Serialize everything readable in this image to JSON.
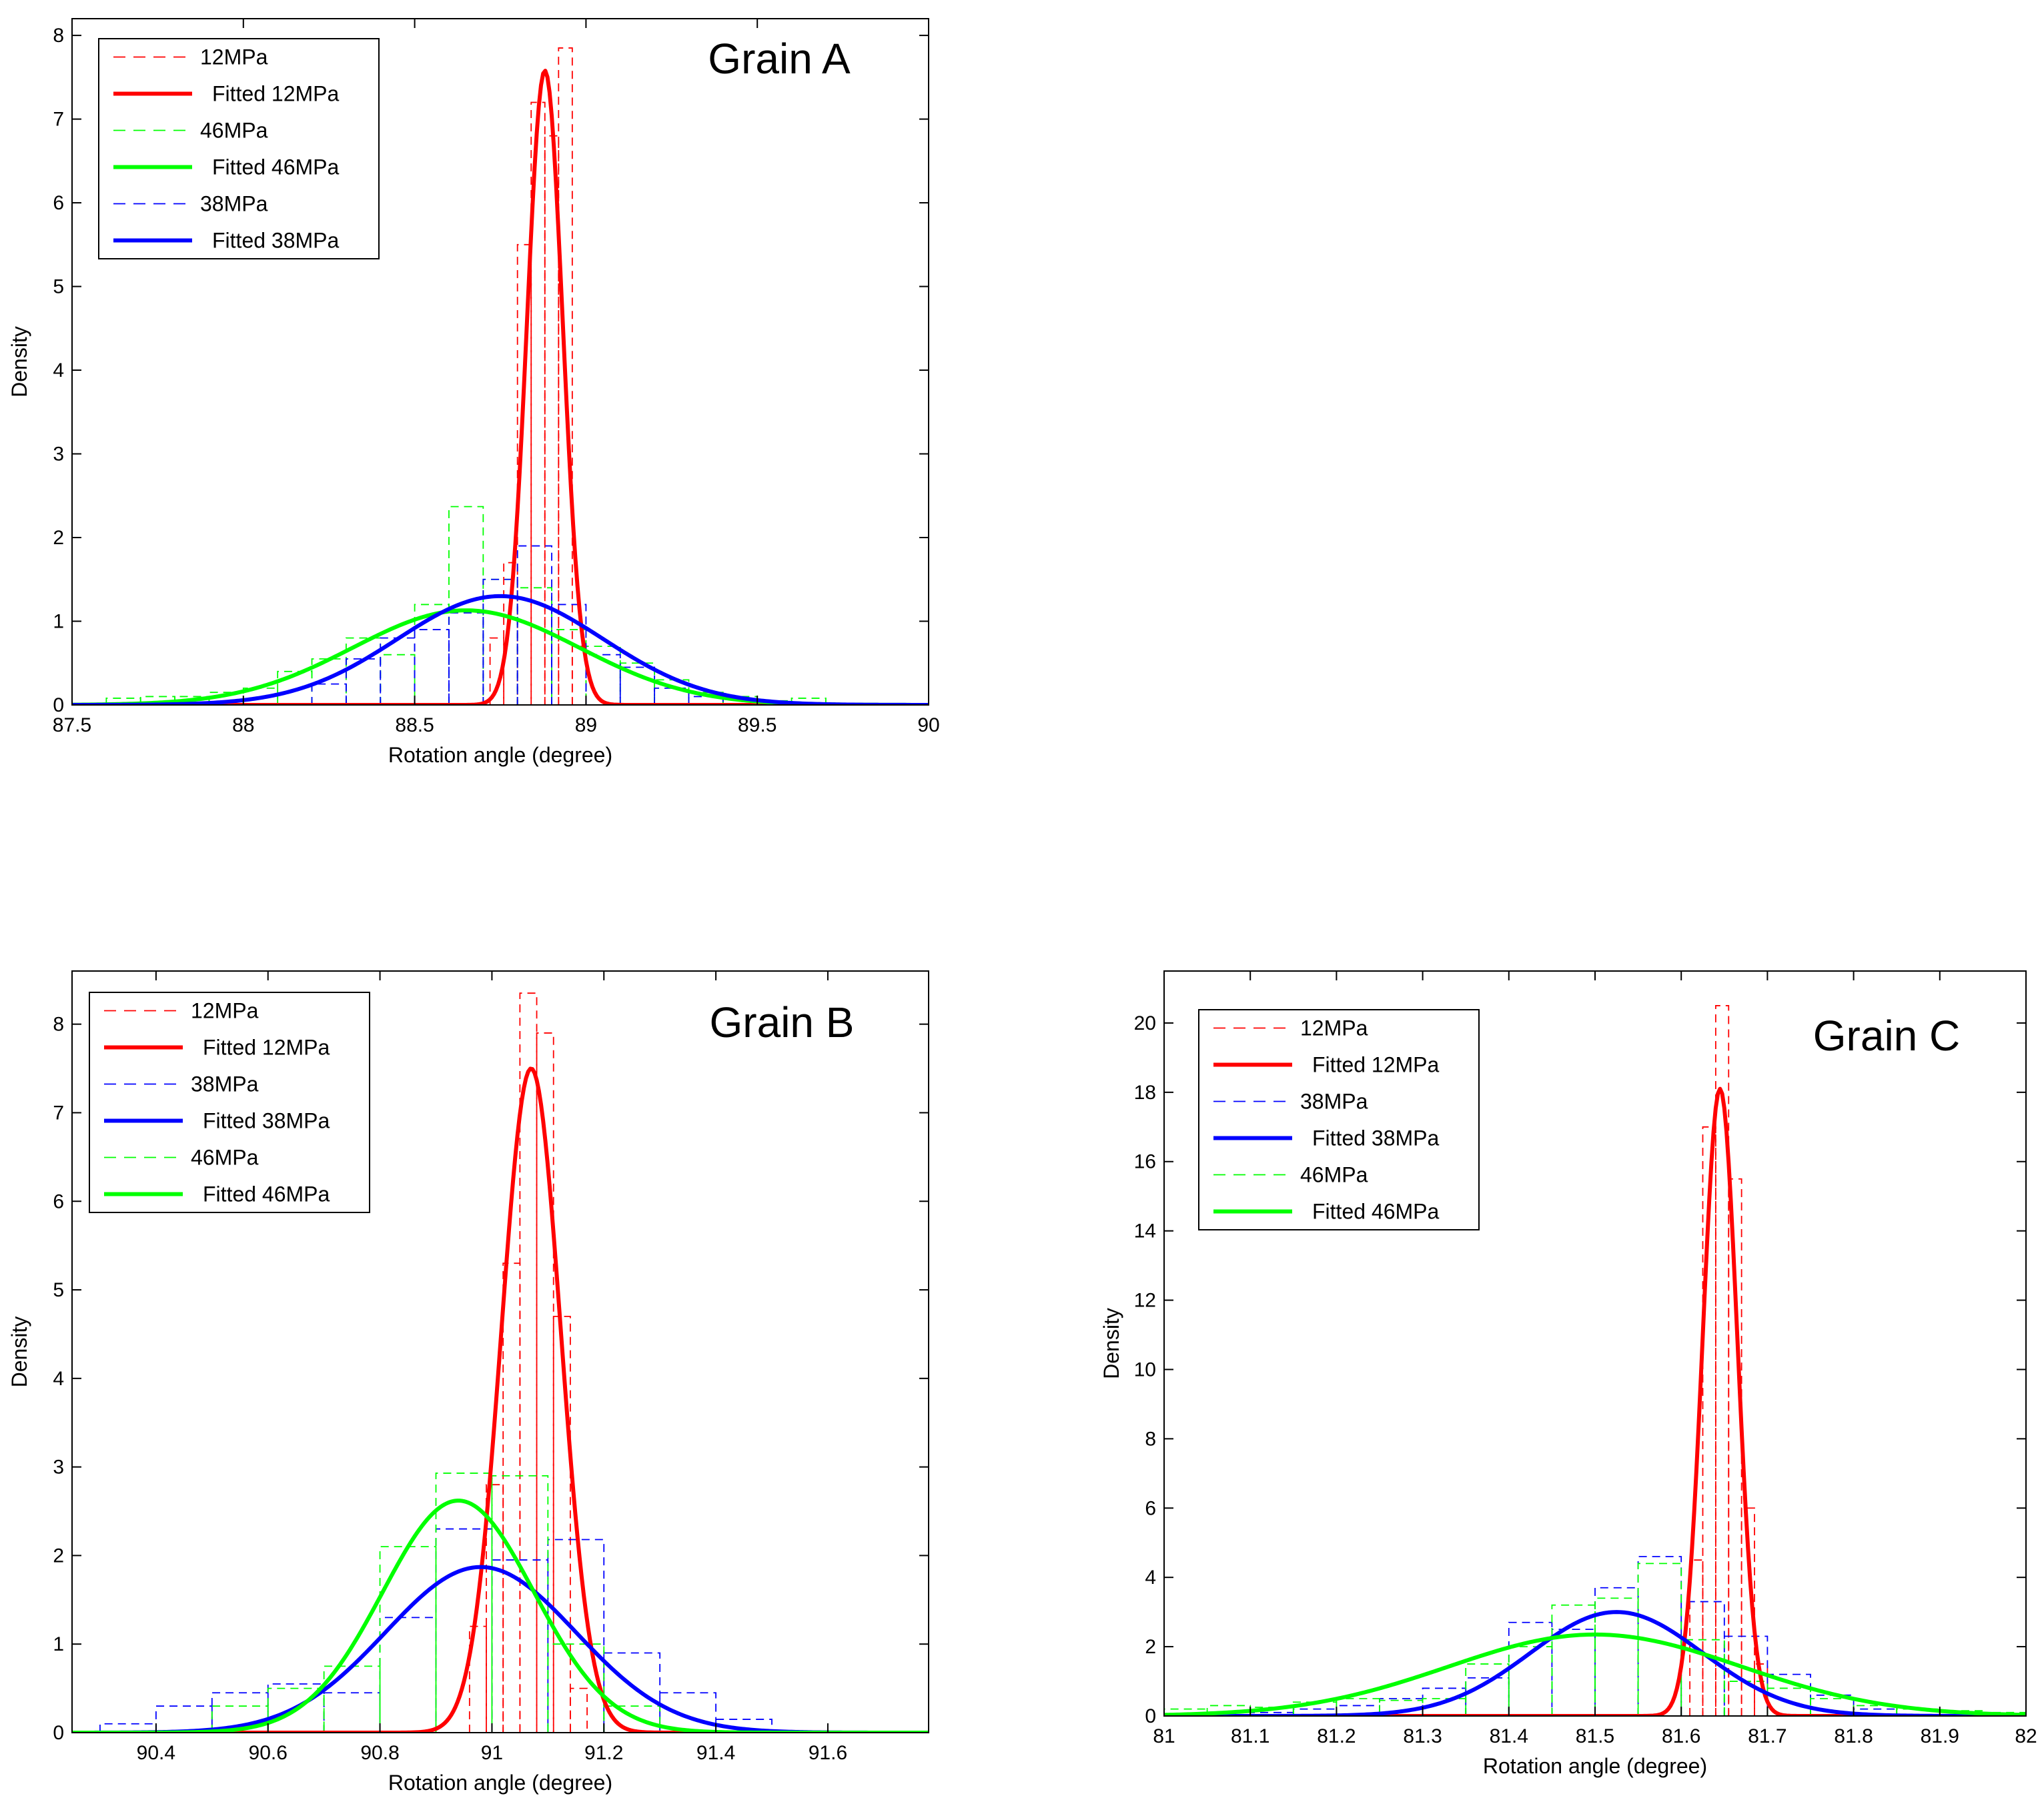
{
  "chart_data": [
    {
      "type": "line",
      "title": "Grain A",
      "xlabel": "Rotation angle (degree)",
      "ylabel": "Density",
      "xlim": [
        87.5,
        90
      ],
      "ylim": [
        0,
        8.2
      ],
      "xticks": [
        87.5,
        88,
        88.5,
        89,
        89.5,
        90
      ],
      "xtick_labels": [
        "87.5",
        "88",
        "88.5",
        "89",
        "89.5",
        "90"
      ],
      "yticks": [
        0,
        1,
        2,
        3,
        4,
        5,
        6,
        7,
        8
      ],
      "ytick_labels": [
        "0",
        "1",
        "2",
        "3",
        "4",
        "5",
        "6",
        "7",
        "8"
      ],
      "legend_position": "top-left",
      "series": [
        {
          "name": "12MPa",
          "kind": "histogram",
          "color": "#ff0000",
          "bin_edges": [
            88.72,
            88.76,
            88.8,
            88.84,
            88.88,
            88.92,
            88.96,
            89.0
          ],
          "values": [
            0.8,
            1.7,
            5.5,
            7.2,
            6.8,
            7.85,
            0.7
          ]
        },
        {
          "name": "Fitted 12MPa",
          "kind": "gaussian",
          "color": "#ff0000",
          "mu": 88.88,
          "sigma": 0.052,
          "peak": 7.58
        },
        {
          "name": "46MPa",
          "kind": "histogram",
          "color": "#00ff00",
          "bin_edges": [
            87.6,
            87.7,
            87.8,
            87.9,
            88.0,
            88.1,
            88.2,
            88.3,
            88.4,
            88.5,
            88.6,
            88.7,
            88.8,
            88.9,
            89.0,
            89.1,
            89.2,
            89.3,
            89.4,
            89.5,
            89.6,
            89.7
          ],
          "values": [
            0.08,
            0.1,
            0.1,
            0.15,
            0.2,
            0.4,
            0.55,
            0.8,
            0.6,
            1.2,
            2.37,
            1.5,
            1.4,
            0.9,
            0.7,
            0.5,
            0.3,
            0.15,
            0.1,
            0.05,
            0.08
          ]
        },
        {
          "name": "Fitted 46MPa",
          "kind": "gaussian",
          "color": "#00ff00",
          "mu": 88.65,
          "sigma": 0.33,
          "peak": 1.13
        },
        {
          "name": "38MPa",
          "kind": "histogram",
          "color": "#0000ff",
          "bin_edges": [
            88.2,
            88.3,
            88.4,
            88.5,
            88.6,
            88.7,
            88.8,
            88.9,
            89.0,
            89.1,
            89.2,
            89.3,
            89.4
          ],
          "values": [
            0.25,
            0.55,
            0.8,
            0.9,
            1.1,
            1.5,
            1.9,
            1.2,
            0.6,
            0.45,
            0.2,
            0.1
          ]
        },
        {
          "name": "Fitted 38MPa",
          "kind": "gaussian",
          "color": "#0000ff",
          "mu": 88.75,
          "sigma": 0.3,
          "peak": 1.3
        }
      ]
    },
    {
      "type": "line",
      "title": "Grain B",
      "xlabel": "Rotation angle (degree)",
      "ylabel": "Density",
      "xlim": [
        90.25,
        91.78
      ],
      "ylim": [
        0,
        8.6
      ],
      "xticks": [
        90.4,
        90.6,
        90.8,
        91,
        91.2,
        91.4,
        91.6
      ],
      "xtick_labels": [
        "90.4",
        "90.6",
        "90.8",
        "91",
        "91.2",
        "91.4",
        "91.6"
      ],
      "yticks": [
        0,
        1,
        2,
        3,
        4,
        5,
        6,
        7,
        8
      ],
      "ytick_labels": [
        "0",
        "1",
        "2",
        "3",
        "4",
        "5",
        "6",
        "7",
        "8"
      ],
      "legend_position": "top-left",
      "series": [
        {
          "name": "12MPa",
          "kind": "histogram",
          "color": "#ff0000",
          "bin_edges": [
            90.96,
            90.99,
            91.02,
            91.05,
            91.08,
            91.11,
            91.14,
            91.17
          ],
          "values": [
            1.2,
            2.8,
            5.3,
            8.35,
            7.9,
            4.7,
            0.5
          ]
        },
        {
          "name": "Fitted 12MPa",
          "kind": "gaussian",
          "color": "#ff0000",
          "mu": 91.07,
          "sigma": 0.053,
          "peak": 7.5
        },
        {
          "name": "38MPa",
          "kind": "histogram",
          "color": "#0000ff",
          "bin_edges": [
            90.3,
            90.4,
            90.5,
            90.6,
            90.7,
            90.8,
            90.9,
            91.0,
            91.1,
            91.2,
            91.3,
            91.4,
            91.5
          ],
          "values": [
            0.1,
            0.3,
            0.45,
            0.55,
            0.45,
            1.3,
            2.3,
            1.95,
            2.18,
            0.9,
            0.45,
            0.15
          ]
        },
        {
          "name": "Fitted 38MPa",
          "kind": "gaussian",
          "color": "#0000ff",
          "mu": 90.98,
          "sigma": 0.17,
          "peak": 1.87
        },
        {
          "name": "46MPa",
          "kind": "histogram",
          "color": "#00ff00",
          "bin_edges": [
            90.5,
            90.6,
            90.7,
            90.8,
            90.9,
            91.0,
            91.1,
            91.2,
            91.3
          ],
          "values": [
            0.3,
            0.5,
            0.75,
            2.1,
            2.93,
            2.9,
            1.0,
            0.3
          ]
        },
        {
          "name": "Fitted 46MPa",
          "kind": "gaussian",
          "color": "#00ff00",
          "mu": 90.94,
          "sigma": 0.135,
          "peak": 2.62
        }
      ]
    },
    {
      "type": "line",
      "title": "Grain C",
      "xlabel": "Rotation angle (degree)",
      "ylabel": "Density",
      "xlim": [
        81,
        82
      ],
      "ylim": [
        0,
        21.5
      ],
      "xticks": [
        81,
        81.1,
        81.2,
        81.3,
        81.4,
        81.5,
        81.6,
        81.7,
        81.8,
        81.9,
        82
      ],
      "xtick_labels": [
        "81",
        "81.1",
        "81.2",
        "81.3",
        "81.4",
        "81.5",
        "81.6",
        "81.7",
        "81.8",
        "81.9",
        "82"
      ],
      "yticks": [
        0,
        2,
        4,
        6,
        8,
        10,
        12,
        14,
        16,
        18,
        20
      ],
      "ytick_labels": [
        "0",
        "2",
        "4",
        "6",
        "8",
        "10",
        "12",
        "14",
        "16",
        "18",
        "20"
      ],
      "legend_position": "top-left",
      "series": [
        {
          "name": "12MPa",
          "kind": "histogram",
          "color": "#ff0000",
          "bin_edges": [
            81.61,
            81.625,
            81.64,
            81.655,
            81.67,
            81.685,
            81.7
          ],
          "values": [
            4.5,
            17.0,
            20.5,
            15.5,
            6.0,
            1.5
          ]
        },
        {
          "name": "Fitted 12MPa",
          "kind": "gaussian",
          "color": "#ff0000",
          "mu": 81.645,
          "sigma": 0.02,
          "peak": 18.1
        },
        {
          "name": "38MPa",
          "kind": "histogram",
          "color": "#0000ff",
          "bin_edges": [
            81.1,
            81.15,
            81.2,
            81.25,
            81.3,
            81.35,
            81.4,
            81.45,
            81.5,
            81.55,
            81.6,
            81.65,
            81.7,
            81.75,
            81.8,
            81.85
          ],
          "values": [
            0.1,
            0.2,
            0.3,
            0.5,
            0.8,
            1.1,
            2.7,
            2.5,
            3.7,
            4.6,
            3.3,
            2.3,
            1.2,
            0.6,
            0.2
          ]
        },
        {
          "name": "Fitted 38MPa",
          "kind": "gaussian",
          "color": "#0000ff",
          "mu": 81.525,
          "sigma": 0.1,
          "peak": 3.0
        },
        {
          "name": "46MPa",
          "kind": "histogram",
          "color": "#00ff00",
          "bin_edges": [
            81.0,
            81.05,
            81.1,
            81.15,
            81.2,
            81.25,
            81.3,
            81.35,
            81.4,
            81.45,
            81.5,
            81.55,
            81.6,
            81.65,
            81.7,
            81.75,
            81.8,
            81.85,
            81.9,
            81.95,
            82.0
          ],
          "values": [
            0.2,
            0.3,
            0.25,
            0.4,
            0.5,
            0.45,
            0.5,
            1.5,
            2.0,
            3.2,
            3.4,
            4.4,
            2.2,
            1.0,
            0.8,
            0.5,
            0.3,
            0.2,
            0.15,
            0.1
          ]
        },
        {
          "name": "Fitted 46MPa",
          "kind": "gaussian",
          "color": "#00ff00",
          "mu": 81.5,
          "sigma": 0.17,
          "peak": 2.35
        }
      ]
    }
  ]
}
